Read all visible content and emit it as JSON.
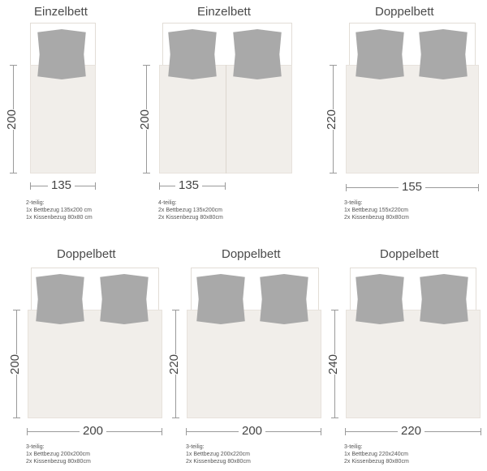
{
  "panels": [
    {
      "title": "Einzelbett",
      "width_label": "135",
      "length_label": "200",
      "desc": [
        "2-teilig:",
        "1x Bettbezug 135x200 cm",
        "1x Kissenbezug 80x80 cm"
      ]
    },
    {
      "title": "Einzelbett",
      "width_label": "135",
      "length_label": "200",
      "desc": [
        "4-teilig:",
        "2x Bettbezug 135x200cm",
        "2x Kissenbezug 80x80cm"
      ]
    },
    {
      "title": "Doppelbett",
      "width_label": "155",
      "length_label": "220",
      "desc": [
        "3-teilig:",
        "1x Bettbezug 155x220cm",
        "2x Kissenbezug 80x80cm"
      ]
    },
    {
      "title": "Doppelbett",
      "width_label": "200",
      "length_label": "200",
      "desc": [
        "3-teilig:",
        "1x Bettbezug 200x200cm",
        "2x Kissenbezug 80x80cm"
      ]
    },
    {
      "title": "Doppelbett",
      "width_label": "200",
      "length_label": "220",
      "desc": [
        "3-teilig:",
        "1x Bettbezug 200x220cm",
        "2x Kissenbezug 80x80cm"
      ]
    },
    {
      "title": "Doppelbett",
      "width_label": "220",
      "length_label": "240",
      "desc": [
        "3-teilig:",
        "1x Bettbezug 220x240cm",
        "2x Kissenbezug 80x80cm"
      ]
    }
  ]
}
